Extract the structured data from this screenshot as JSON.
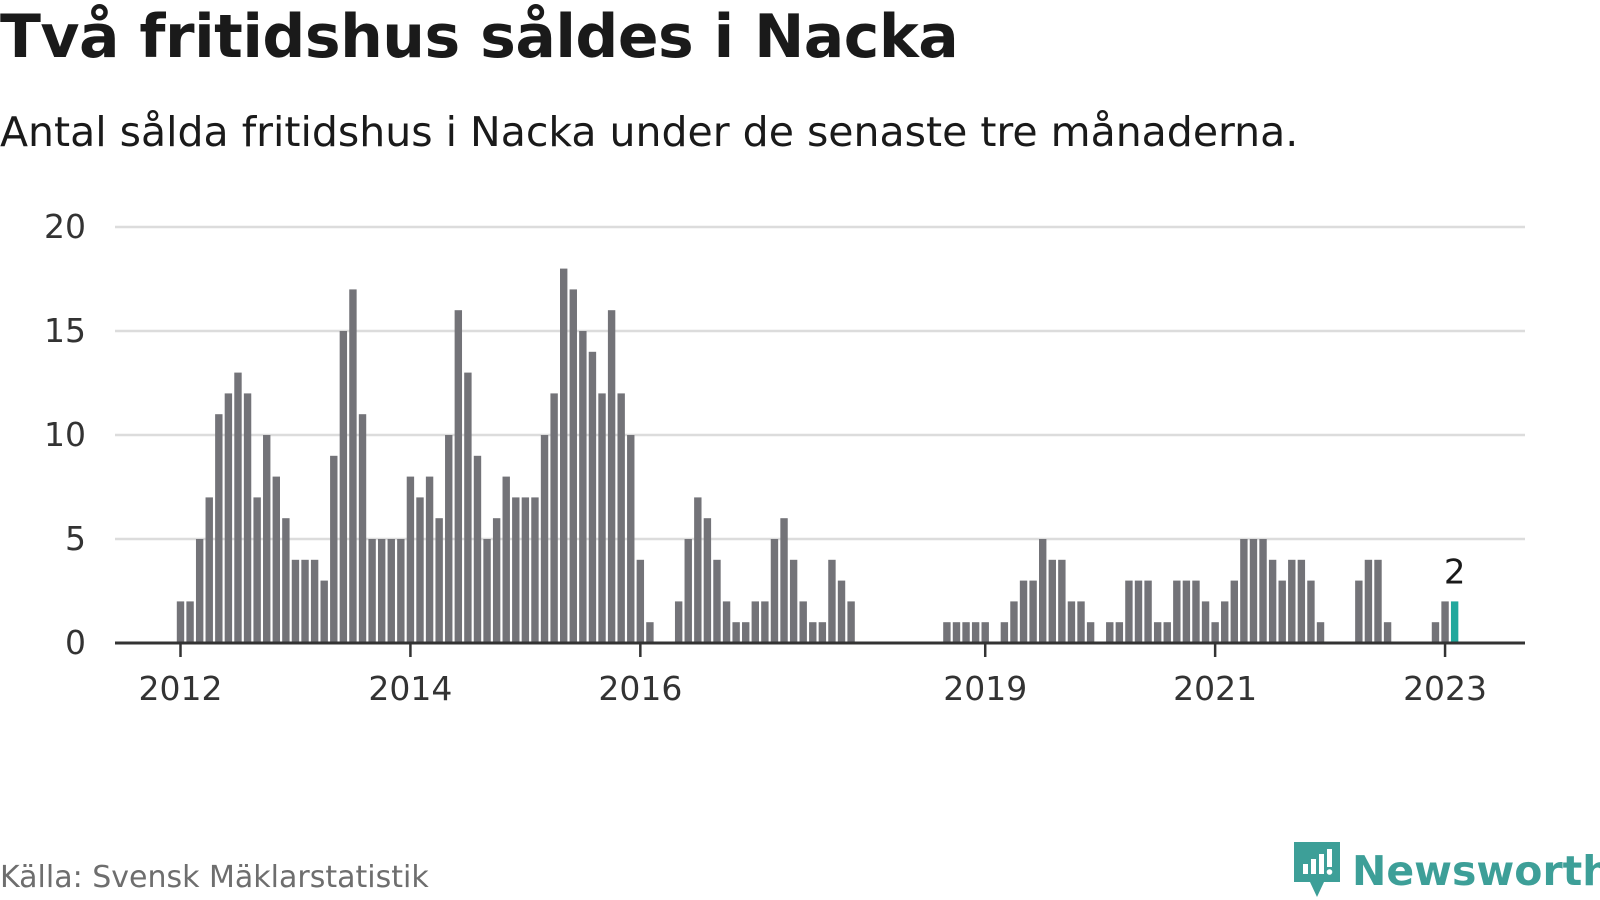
{
  "title": "Två fritidshus såldes i Nacka",
  "subtitle": "Antal sålda fritidshus i Nacka under de senaste tre månaderna.",
  "source": "Källa: Svensk Mäklarstatistik",
  "brand": "Newsworthy",
  "colors": {
    "bar": "#737378",
    "highlight": "#21a89d",
    "grid": "#dcdcdc",
    "axis": "#333333",
    "brand": "#3d9f98"
  },
  "chart_data": {
    "type": "bar",
    "title": "",
    "xlabel": "",
    "ylabel": "",
    "ylim": [
      0,
      20
    ],
    "yticks": [
      "0",
      "5",
      "10",
      "15",
      "20"
    ],
    "xticks": [
      {
        "label": "2012",
        "index": 0
      },
      {
        "label": "2014",
        "index": 24
      },
      {
        "label": "2016",
        "index": 48
      },
      {
        "label": "2019",
        "index": 84
      },
      {
        "label": "2021",
        "index": 108
      },
      {
        "label": "2023",
        "index": 132
      }
    ],
    "start_month": "2012-01",
    "values": [
      2,
      2,
      5,
      7,
      11,
      12,
      13,
      12,
      7,
      10,
      8,
      6,
      4,
      4,
      4,
      3,
      9,
      15,
      17,
      11,
      5,
      5,
      5,
      5,
      8,
      7,
      8,
      6,
      10,
      16,
      13,
      9,
      5,
      6,
      8,
      7,
      7,
      7,
      10,
      12,
      18,
      17,
      15,
      14,
      12,
      16,
      12,
      10,
      4,
      1,
      0,
      0,
      2,
      5,
      7,
      6,
      4,
      2,
      1,
      1,
      2,
      2,
      5,
      6,
      4,
      2,
      1,
      1,
      4,
      3,
      2,
      0,
      0,
      0,
      0,
      0,
      0,
      0,
      0,
      0,
      1,
      1,
      1,
      1,
      1,
      0,
      1,
      2,
      3,
      3,
      5,
      4,
      4,
      2,
      2,
      1,
      0,
      1,
      1,
      3,
      3,
      3,
      1,
      1,
      3,
      3,
      3,
      2,
      1,
      2,
      3,
      5,
      5,
      5,
      4,
      3,
      4,
      4,
      3,
      1,
      0,
      0,
      0,
      3,
      4,
      4,
      1,
      0,
      0,
      0,
      0,
      1,
      2,
      2
    ],
    "highlight_index": 133,
    "highlight_label": "2"
  }
}
